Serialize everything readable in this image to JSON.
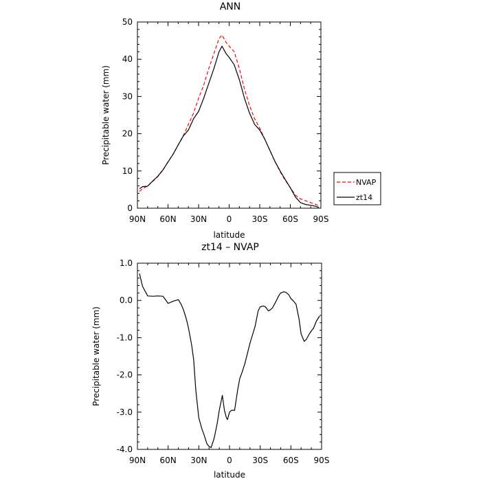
{
  "chart_data": [
    {
      "type": "line",
      "title": "ANN",
      "xlabel": "latitude",
      "ylabel": "Precipitable water (mm)",
      "xlim": [
        90,
        -90
      ],
      "ylim": [
        0,
        50
      ],
      "x_ticks": [
        90,
        60,
        30,
        0,
        -30,
        -60,
        -90
      ],
      "x_tick_labels": [
        "90N",
        "60N",
        "30N",
        "0",
        "30S",
        "60S",
        "90S"
      ],
      "y_ticks": [
        0,
        10,
        20,
        30,
        40,
        50
      ],
      "y_tick_labels": [
        "0",
        "10",
        "20",
        "30",
        "40",
        "50"
      ],
      "legend": {
        "placement": "right-outside",
        "entries": [
          "NVAP",
          "zt14"
        ]
      },
      "series": [
        {
          "name": "NVAP",
          "color": "#ff0000",
          "dash": "dashed",
          "x": [
            88,
            85,
            80,
            75,
            70,
            65,
            60,
            55,
            50,
            45,
            40,
            35,
            30,
            25,
            20,
            15,
            10,
            7,
            5,
            3,
            0,
            -5,
            -10,
            -15,
            -20,
            -25,
            -30,
            -35,
            -40,
            -45,
            -50,
            -55,
            -60,
            -65,
            -70,
            -75,
            -80,
            -85,
            -88
          ],
          "y": [
            4.5,
            5.2,
            6.0,
            7.2,
            8.5,
            10.2,
            12.5,
            14.5,
            17.0,
            19.5,
            22.5,
            25.5,
            29.5,
            33.0,
            37.5,
            41.5,
            45.5,
            46.5,
            45.5,
            44.5,
            43.5,
            42.0,
            37.5,
            32.0,
            27.5,
            24.0,
            21.5,
            18.5,
            15.5,
            12.5,
            9.8,
            7.5,
            5.5,
            3.5,
            2.5,
            2.0,
            1.5,
            1.0,
            0.6
          ]
        },
        {
          "name": "zt14",
          "color": "#000000",
          "dash": "solid",
          "x": [
            88,
            85,
            80,
            75,
            70,
            65,
            60,
            55,
            50,
            45,
            40,
            35,
            30,
            25,
            20,
            15,
            10,
            7,
            5,
            3,
            0,
            -5,
            -10,
            -15,
            -20,
            -25,
            -30,
            -35,
            -40,
            -45,
            -50,
            -55,
            -60,
            -65,
            -70,
            -75,
            -80,
            -85,
            -88
          ],
          "y": [
            5.2,
            5.8,
            5.9,
            7.3,
            8.6,
            10.3,
            12.4,
            14.5,
            17.0,
            19.4,
            21.0,
            24.0,
            26.0,
            29.5,
            33.5,
            37.5,
            42.0,
            43.5,
            42.5,
            41.5,
            40.5,
            38.5,
            34.5,
            29.5,
            25.5,
            22.5,
            21.0,
            18.5,
            15.5,
            12.5,
            10.0,
            7.7,
            5.5,
            3.0,
            1.5,
            1.0,
            0.8,
            0.5,
            0.2
          ]
        }
      ]
    },
    {
      "type": "line",
      "title": "zt14 – NVAP",
      "xlabel": "latitude",
      "ylabel": "Precipitable water (mm)",
      "xlim": [
        90,
        -90
      ],
      "ylim": [
        -4,
        1
      ],
      "x_ticks": [
        90,
        60,
        30,
        0,
        -30,
        -60,
        -90
      ],
      "x_tick_labels": [
        "90N",
        "60N",
        "30N",
        "0",
        "30S",
        "60S",
        "90S"
      ],
      "y_ticks": [
        1,
        0,
        -1,
        -2,
        -3,
        -4
      ],
      "y_tick_labels": [
        "1.0",
        "0.0",
        "-1.0",
        "-2.0",
        "-3.0",
        "-4.0"
      ],
      "series": [
        {
          "color": "#000000",
          "dash": "solid",
          "x": [
            88,
            85,
            80,
            75,
            70,
            65,
            60,
            55,
            50,
            47,
            45,
            42,
            40,
            37,
            35,
            33,
            30,
            27,
            25,
            22,
            20,
            18,
            15,
            12,
            10,
            7,
            5,
            3,
            2,
            0,
            -2,
            -5,
            -8,
            -10,
            -12,
            -15,
            -20,
            -25,
            -28,
            -30,
            -33,
            -35,
            -38,
            -40,
            -42,
            -45,
            -48,
            -50,
            -53,
            -55,
            -58,
            -60,
            -62,
            -65,
            -68,
            -70,
            -73,
            -75,
            -78,
            -80,
            -82,
            -85,
            -88
          ],
          "y": [
            0.72,
            0.38,
            0.12,
            0.11,
            0.12,
            0.11,
            -0.08,
            -0.02,
            0.02,
            -0.12,
            -0.25,
            -0.52,
            -0.75,
            -1.2,
            -1.6,
            -2.4,
            -3.15,
            -3.45,
            -3.6,
            -3.85,
            -3.92,
            -3.95,
            -3.7,
            -3.3,
            -2.95,
            -2.55,
            -2.95,
            -3.15,
            -3.2,
            -3.0,
            -2.95,
            -2.95,
            -2.4,
            -2.1,
            -1.95,
            -1.7,
            -1.15,
            -0.7,
            -0.28,
            -0.17,
            -0.15,
            -0.17,
            -0.28,
            -0.25,
            -0.2,
            -0.05,
            0.12,
            0.2,
            0.23,
            0.22,
            0.15,
            0.05,
            0.0,
            -0.1,
            -0.5,
            -0.9,
            -1.1,
            -1.05,
            -0.9,
            -0.82,
            -0.75,
            -0.55,
            -0.42
          ]
        }
      ]
    }
  ]
}
